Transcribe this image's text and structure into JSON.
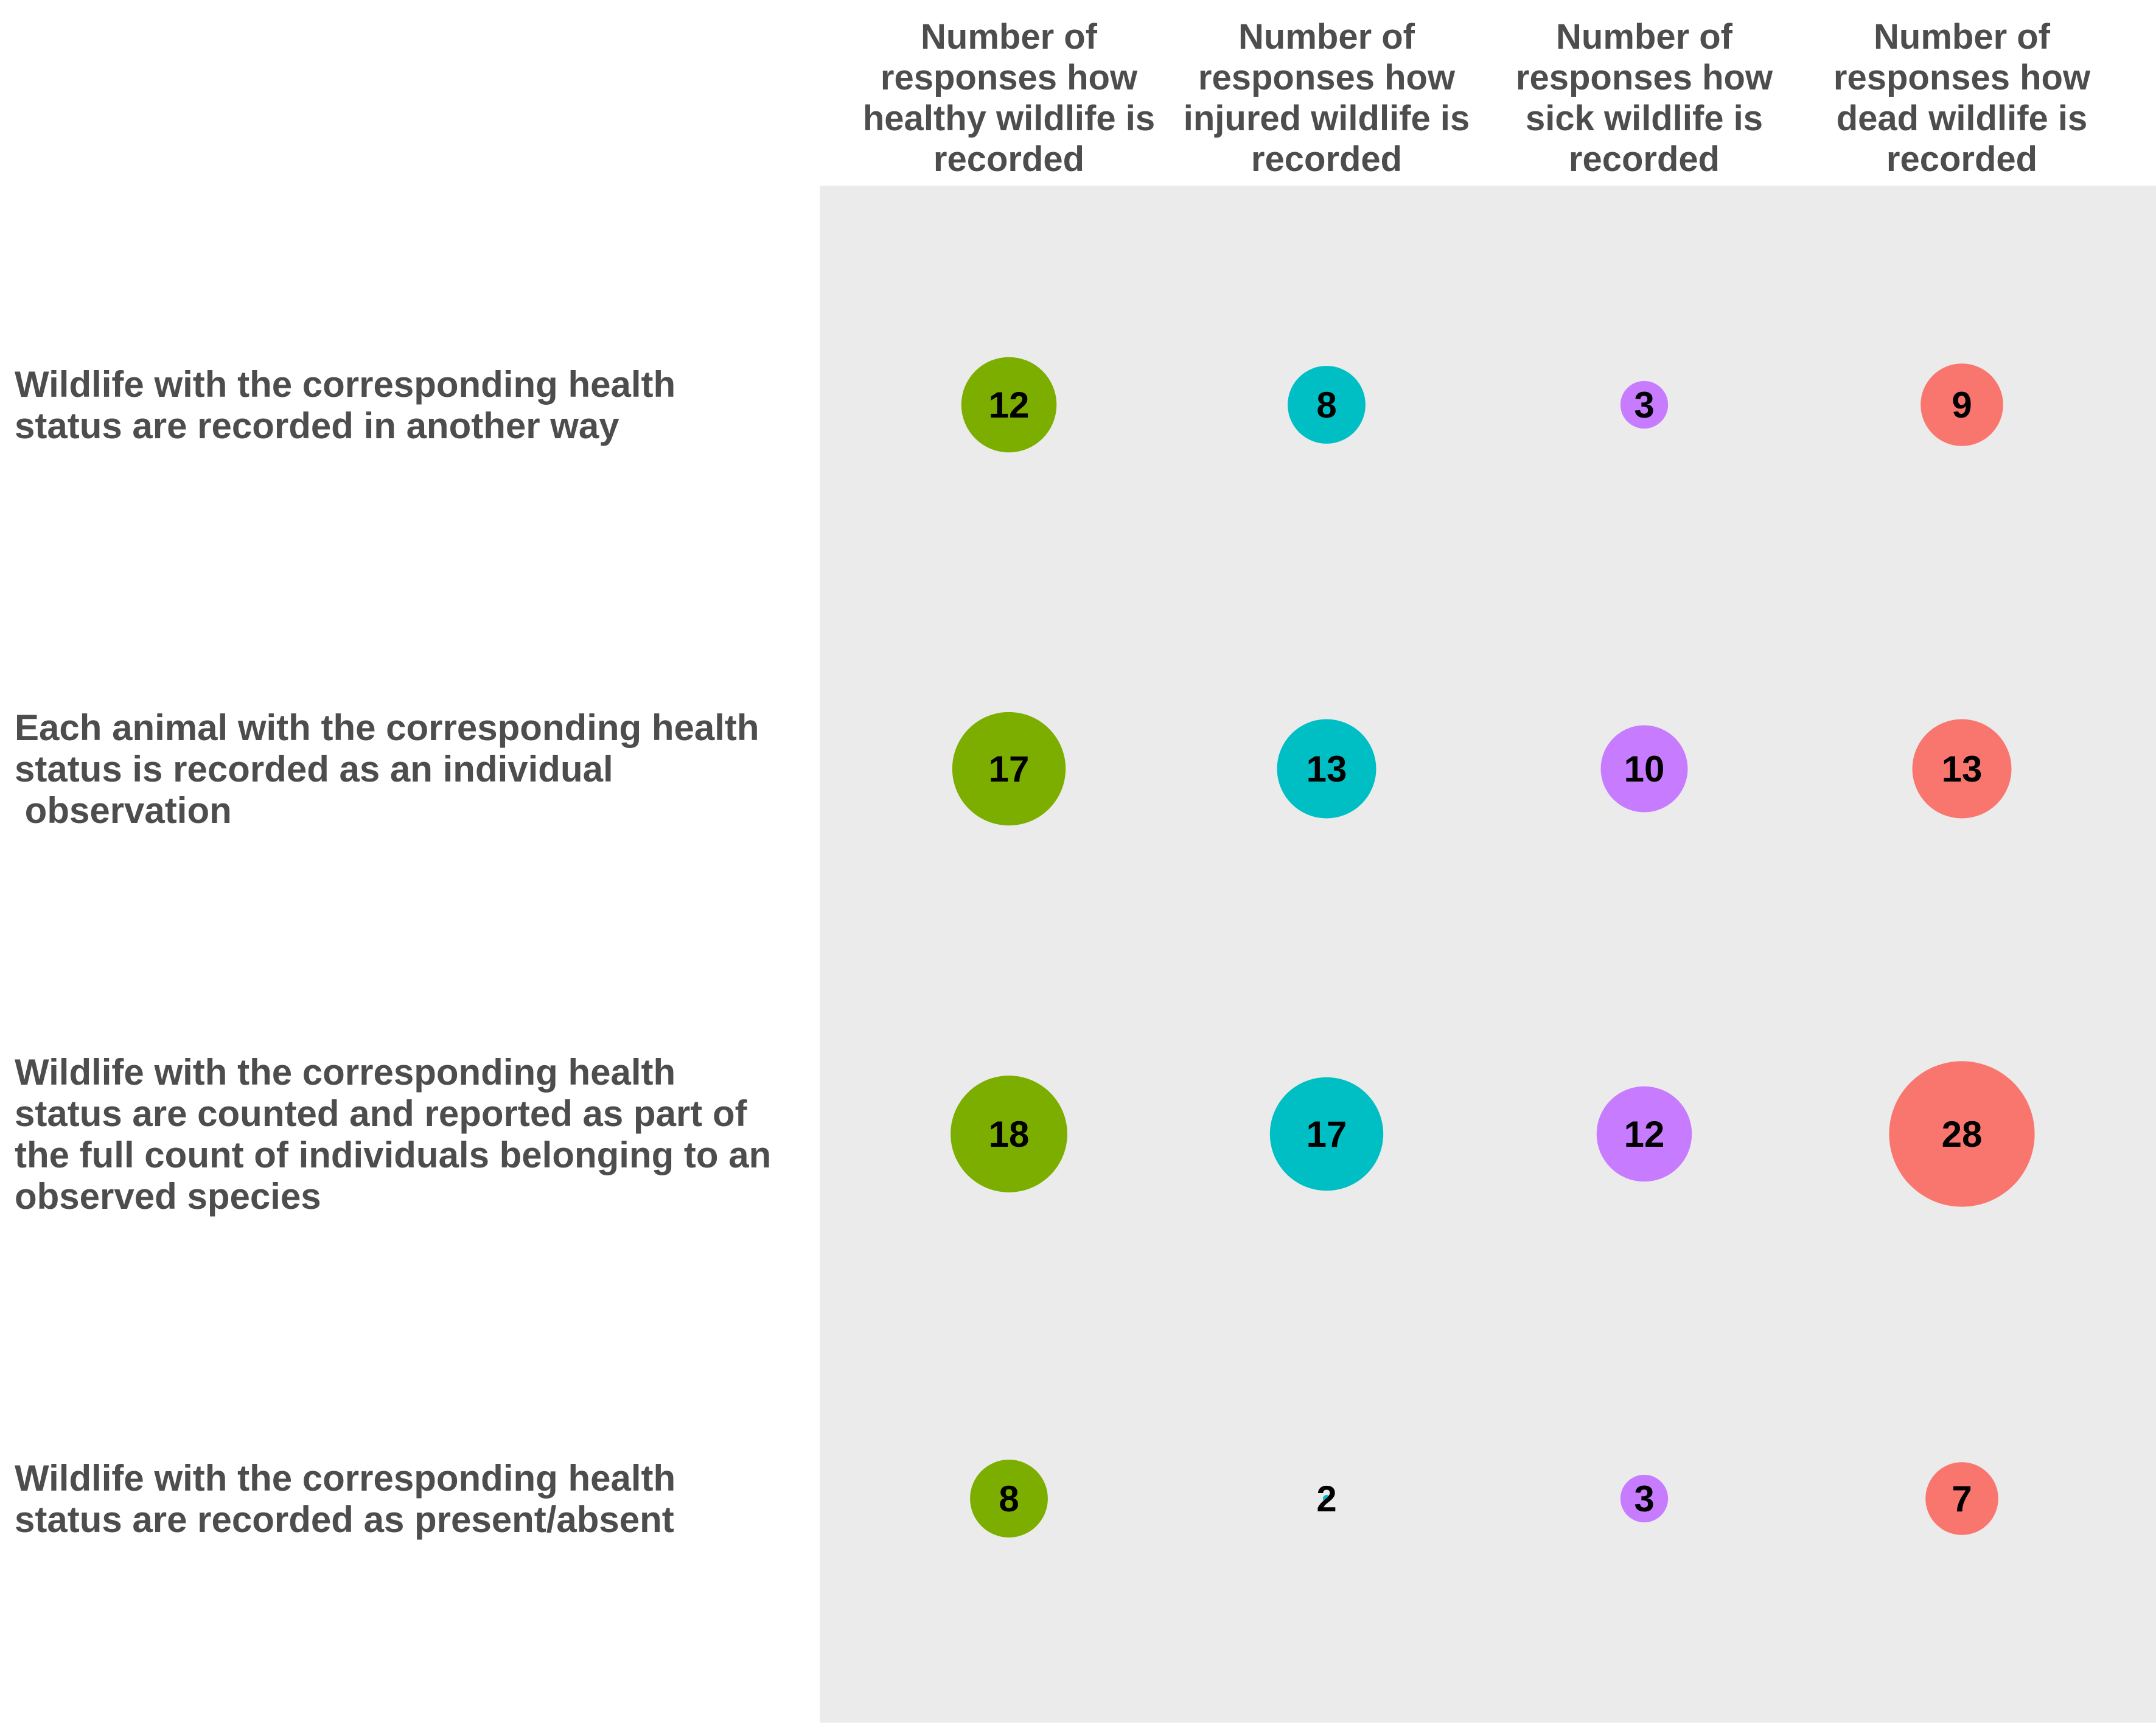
{
  "chart_data": {
    "type": "bubble-matrix",
    "columns": [
      "Number of responses how healthy wildlife is recorded",
      "Number of responses how injured wildlife is recorded",
      "Number of responses how sick wildlife is recorded",
      "Number of responses how dead wildlife is recorded"
    ],
    "column_lines": [
      [
        "Number of",
        "responses how",
        "healthy wildlife is",
        "recorded"
      ],
      [
        "Number of",
        "responses how",
        "injured wildlife is",
        "recorded"
      ],
      [
        "Number of",
        "responses how",
        "sick wildlife is",
        "recorded"
      ],
      [
        "Number of",
        "responses how",
        "dead wildlife is",
        "recorded"
      ]
    ],
    "rows": [
      "Wildlife with the corresponding health status are recorded in another way",
      "Each animal with the corresponding health status is recorded as an individual observation",
      "Wildlife with the corresponding health status are counted and reported as part of the full count of individuals belonging to an observed species",
      "Wildlife with the corresponding health status are recorded as present/absent"
    ],
    "row_lines": [
      [
        "Wildlife with the corresponding health",
        "status are recorded in another way"
      ],
      [
        "Each animal with the corresponding health",
        "status is recorded as an individual",
        " observation"
      ],
      [
        "Wildlife with the corresponding health",
        "status are counted and reported as part of",
        "the full count of individuals belonging to an",
        "observed species"
      ],
      [
        "Wildlife with the corresponding health",
        "status are recorded as present/absent"
      ]
    ],
    "values": [
      [
        12,
        8,
        3,
        9
      ],
      [
        17,
        13,
        10,
        13
      ],
      [
        18,
        17,
        12,
        28
      ],
      [
        8,
        2,
        3,
        7
      ]
    ],
    "colors": [
      "#7cae00",
      "#00bfc4",
      "#c77cff",
      "#f8766d"
    ],
    "panel_background": "#ebebeb",
    "grid": false,
    "legend": "none",
    "size_scale": "area proportional to value"
  }
}
